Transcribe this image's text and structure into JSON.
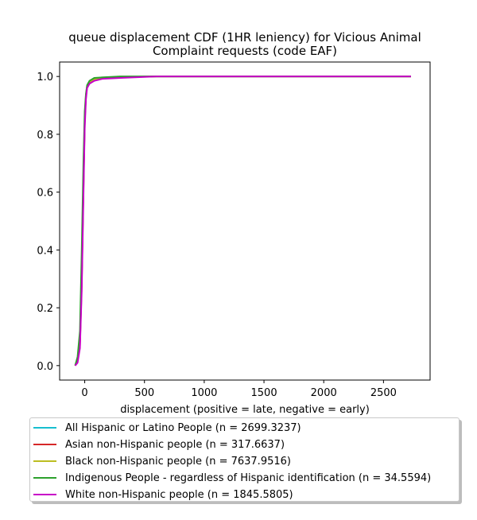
{
  "chart_data": {
    "type": "line",
    "title": "queue displacement CDF (1HR leniency) for Vicious Animal\nComplaint  requests (code EAF)",
    "title_lines": [
      "queue displacement CDF (1HR leniency) for Vicious Animal",
      "Complaint  requests (code EAF)"
    ],
    "xlabel": "displacement (positive = late, negative = early)",
    "ylabel": "",
    "xlim": [
      -210,
      2890
    ],
    "ylim": [
      -0.05,
      1.05
    ],
    "xticks": [
      0,
      500,
      1000,
      1500,
      2000,
      2500
    ],
    "yticks": [
      0.0,
      0.2,
      0.4,
      0.6,
      0.8,
      1.0
    ],
    "xtick_labels": [
      "0",
      "500",
      "1000",
      "1500",
      "2000",
      "2500"
    ],
    "ytick_labels": [
      "0.0",
      "0.2",
      "0.4",
      "0.6",
      "0.8",
      "1.0"
    ],
    "grid": false,
    "legend_position": "below-plot",
    "series": [
      {
        "name": "All Hispanic or Latino People (n = 2699.3237)",
        "color": "#17becf",
        "x": [
          -80,
          -60,
          -40,
          -25,
          -10,
          0,
          10,
          20,
          40,
          80,
          150,
          300,
          600,
          2730
        ],
        "y": [
          0.0,
          0.02,
          0.08,
          0.3,
          0.65,
          0.85,
          0.93,
          0.965,
          0.98,
          0.99,
          0.995,
          0.998,
          1.0,
          1.0
        ]
      },
      {
        "name": "Asian non-Hispanic people (n = 317.6637)",
        "color": "#d62728",
        "x": [
          -80,
          -60,
          -40,
          -25,
          -10,
          0,
          10,
          20,
          40,
          80,
          150,
          300,
          600,
          2730
        ],
        "y": [
          0.0,
          0.015,
          0.07,
          0.28,
          0.62,
          0.84,
          0.93,
          0.965,
          0.98,
          0.99,
          0.995,
          0.998,
          1.0,
          1.0
        ]
      },
      {
        "name": "Black non-Hispanic people (n = 7637.9516)",
        "color": "#bcbd22",
        "x": [
          -80,
          -60,
          -40,
          -25,
          -10,
          0,
          10,
          20,
          40,
          80,
          150,
          300,
          600,
          2730
        ],
        "y": [
          0.0,
          0.02,
          0.08,
          0.3,
          0.64,
          0.85,
          0.935,
          0.967,
          0.982,
          0.99,
          0.995,
          0.998,
          1.0,
          1.0
        ]
      },
      {
        "name": "Indigenous People - regardless of Hispanic identification (n = 34.5594)",
        "color": "#2ca02c",
        "x": [
          -80,
          -60,
          -40,
          -25,
          -10,
          0,
          10,
          20,
          40,
          80,
          150,
          300,
          600,
          2730
        ],
        "y": [
          0.0,
          0.03,
          0.12,
          0.4,
          0.72,
          0.88,
          0.94,
          0.97,
          0.985,
          0.995,
          0.997,
          1.0,
          1.0,
          1.0
        ]
      },
      {
        "name": "White non-Hispanic people (n = 1845.5805)",
        "color": "#c700c7",
        "x": [
          -80,
          -60,
          -40,
          -25,
          -10,
          0,
          10,
          20,
          40,
          80,
          150,
          300,
          600,
          2730
        ],
        "y": [
          0.0,
          0.01,
          0.06,
          0.26,
          0.6,
          0.82,
          0.92,
          0.96,
          0.975,
          0.985,
          0.992,
          0.995,
          1.0,
          1.0
        ]
      }
    ]
  }
}
